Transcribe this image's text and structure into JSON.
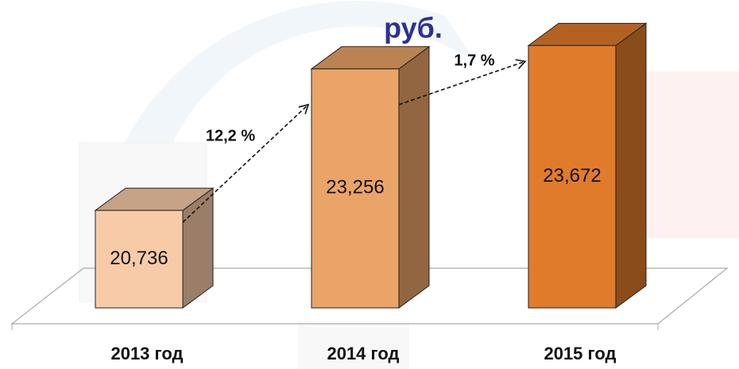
{
  "chart_data": {
    "type": "bar3d",
    "title": "руб.",
    "categories": [
      "2013 год",
      "2014 год",
      "2015 год"
    ],
    "values": [
      20.736,
      23.256,
      23.672
    ],
    "value_labels": [
      "20,736",
      "23,256",
      "23,672"
    ],
    "colors": [
      "#f8cba8",
      "#eba467",
      "#e07b2c"
    ],
    "ylim": [
      19,
      24.2
    ],
    "annotations": [
      "12,2 %",
      "1,7 %"
    ]
  }
}
